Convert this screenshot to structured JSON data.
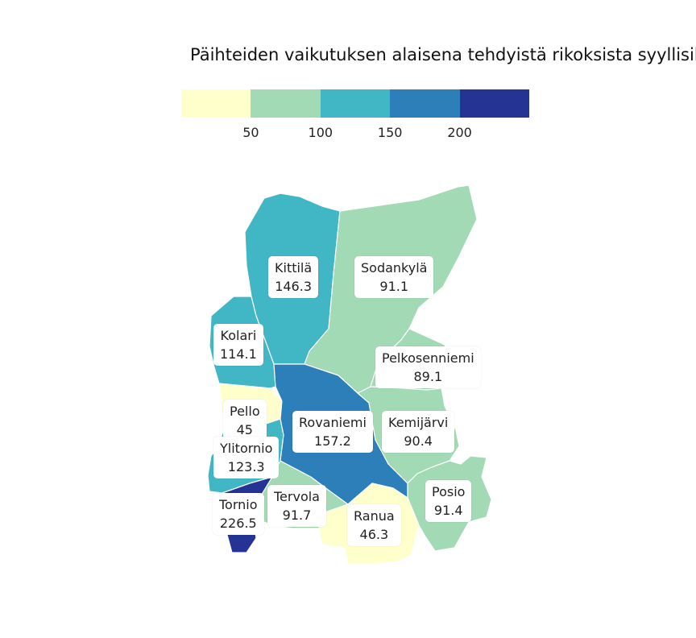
{
  "title": "Päihteiden vaikutuksen alaisena tehdyistä rikoksista syyllisik",
  "legend": {
    "colors": [
      "#ffffcc",
      "#a1dab4",
      "#41b6c4",
      "#2c7fb8",
      "#253494"
    ],
    "ticks": [
      "50",
      "100",
      "150",
      "200"
    ]
  },
  "municipalities": [
    {
      "id": "kittila",
      "name": "Kittilä",
      "value": "146.3",
      "color": "#41b6c4"
    },
    {
      "id": "sodankyla",
      "name": "Sodankylä",
      "value": "91.1",
      "color": "#a1dab4"
    },
    {
      "id": "kolari",
      "name": "Kolari",
      "value": "114.1",
      "color": "#41b6c4"
    },
    {
      "id": "pelkosenniemi",
      "name": "Pelkosenniemi",
      "value": "89.1",
      "color": "#a1dab4"
    },
    {
      "id": "pello",
      "name": "Pello",
      "value": "45",
      "color": "#ffffcc"
    },
    {
      "id": "rovaniemi",
      "name": "Rovaniemi",
      "value": "157.2",
      "color": "#2c7fb8"
    },
    {
      "id": "kemijarvi",
      "name": "Kemijärvi",
      "value": "90.4",
      "color": "#a1dab4"
    },
    {
      "id": "ylitornio",
      "name": "Ylitornio",
      "value": "123.3",
      "color": "#41b6c4"
    },
    {
      "id": "posio",
      "name": "Posio",
      "value": "91.4",
      "color": "#a1dab4"
    },
    {
      "id": "tornio",
      "name": "Tornio",
      "value": "226.5",
      "color": "#253494"
    },
    {
      "id": "tervola",
      "name": "Tervola",
      "value": "91.7",
      "color": "#a1dab4"
    },
    {
      "id": "ranua",
      "name": "Ranua",
      "value": "46.3",
      "color": "#ffffcc"
    }
  ]
}
